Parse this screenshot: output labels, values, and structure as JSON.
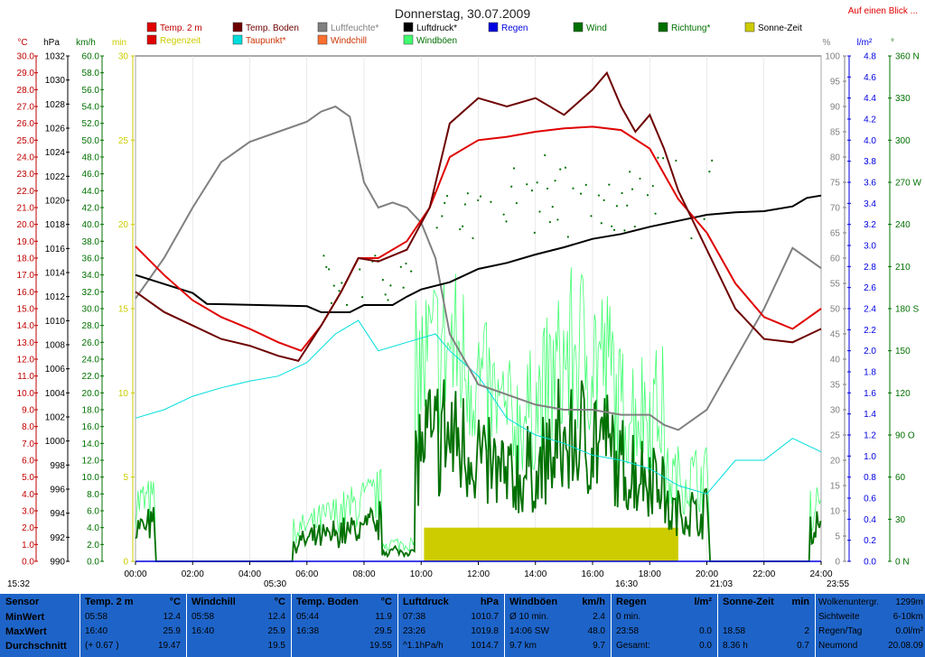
{
  "title": "Donnerstag, 30.07.2009",
  "top_link": "Auf einen Blick ...",
  "legend": [
    {
      "label": "Temp. 2 m",
      "color": "#e00000",
      "text_color": "#c00000"
    },
    {
      "label": "Temp. Boden",
      "color": "#6e0000",
      "text_color": "#6e0000"
    },
    {
      "label": "Luftfeuchte*",
      "color": "#808080",
      "text_color": "#808080"
    },
    {
      "label": "Luftdruck*",
      "color": "#000000",
      "text_color": "#000000"
    },
    {
      "label": "Regen",
      "color": "#0000e0",
      "text_color": "#0000e0"
    },
    {
      "label": "Wind",
      "color": "#007000",
      "text_color": "#007000"
    },
    {
      "label": "Richtung*",
      "color": "#007000",
      "text_color": "#007000"
    },
    {
      "label": "Sonne-Zeit",
      "color": "#cccc00",
      "text_color": "#000000"
    },
    {
      "label": "Regenzeit",
      "color": "#e00000",
      "text_color": "#cccc00"
    },
    {
      "label": "Taupunkt*",
      "color": "#00dddd",
      "text_color": "#cc3300"
    },
    {
      "label": "Windchill",
      "color": "#ff7030",
      "text_color": "#cc3300"
    },
    {
      "label": "Windböen",
      "color": "#40ff70",
      "text_color": "#007000"
    }
  ],
  "axis_units": {
    "temp": "°C",
    "hpa": "hPa",
    "kmh": "km/h",
    "min": "min",
    "pct": "%",
    "lm2": "l/m²",
    "deg": "°"
  },
  "axes": {
    "temp": [
      "30.0",
      "29.0",
      "28.0",
      "27.0",
      "26.0",
      "25.0",
      "24.0",
      "23.0",
      "22.0",
      "21.0",
      "20.0",
      "19.0",
      "18.0",
      "17.0",
      "16.0",
      "15.0",
      "14.0",
      "13.0",
      "12.0",
      "11.0",
      "10.0",
      "9.0",
      "8.0",
      "7.0",
      "6.0",
      "5.0",
      "4.0",
      "3.0",
      "2.0",
      "1.0",
      "0.0"
    ],
    "hpa": [
      "1032",
      "1030",
      "1028",
      "1026",
      "1024",
      "1022",
      "1020",
      "1018",
      "1016",
      "1014",
      "1012",
      "1010",
      "1008",
      "1006",
      "1004",
      "1002",
      "1000",
      "998",
      "996",
      "994",
      "992",
      "990"
    ],
    "kmh": [
      "60.0",
      "58.0",
      "56.0",
      "54.0",
      "52.0",
      "50.0",
      "48.0",
      "46.0",
      "44.0",
      "42.0",
      "40.0",
      "38.0",
      "36.0",
      "34.0",
      "32.0",
      "30.0",
      "28.0",
      "26.0",
      "24.0",
      "22.0",
      "20.0",
      "18.0",
      "16.0",
      "14.0",
      "12.0",
      "10.0",
      "8.0",
      "6.0",
      "4.0",
      "2.0",
      "0.0"
    ],
    "min": [
      "30",
      "25",
      "20",
      "15",
      "10",
      "5",
      "0"
    ],
    "pct": [
      "100",
      "95",
      "90",
      "85",
      "80",
      "75",
      "70",
      "65",
      "60",
      "55",
      "50",
      "45",
      "40",
      "35",
      "30",
      "25",
      "20",
      "15",
      "10",
      "5",
      "0"
    ],
    "lm2": [
      "4.8",
      "4.6",
      "4.4",
      "4.2",
      "4.0",
      "3.8",
      "3.6",
      "3.4",
      "3.2",
      "3.0",
      "2.8",
      "2.6",
      "2.4",
      "2.2",
      "2.0",
      "1.8",
      "1.6",
      "1.4",
      "1.2",
      "1.0",
      "0.8",
      "0.6",
      "0.4",
      "0.2",
      "0.0"
    ],
    "deg": [
      {
        "v": "360 N",
        "p": 0
      },
      {
        "v": "330",
        "p": 0.0833
      },
      {
        "v": "300",
        "p": 0.1667
      },
      {
        "v": "270 W",
        "p": 0.25
      },
      {
        "v": "240",
        "p": 0.3333
      },
      {
        "v": "210",
        "p": 0.4167
      },
      {
        "v": "180 S",
        "p": 0.5
      },
      {
        "v": "150",
        "p": 0.5833
      },
      {
        "v": "120",
        "p": 0.6667
      },
      {
        "v": "90 O",
        "p": 0.75
      },
      {
        "v": "60",
        "p": 0.8333
      },
      {
        "v": "30",
        "p": 0.9167
      },
      {
        "v": "0 N",
        "p": 1
      }
    ],
    "x": [
      "00:00",
      "02:00",
      "04:00",
      "06:00",
      "08:00",
      "10:00",
      "12:00",
      "14:00",
      "16:00",
      "18:00",
      "20:00",
      "22:00",
      "24:00"
    ]
  },
  "sun_times": {
    "sunrise": "05:30",
    "sunset": "21:03",
    "first": "15:32",
    "last": "23:55",
    "noon": "16:30"
  },
  "chart_data": {
    "type": "line",
    "x_range": [
      "00:00",
      "24:00"
    ],
    "series": [
      {
        "name": "Temp. 2 m",
        "unit": "°C",
        "color": "#e00000",
        "x": [
          0,
          1,
          2,
          3,
          4,
          5,
          5.8,
          6.5,
          7.2,
          7.8,
          8.5,
          9.5,
          10.3,
          11,
          12,
          13,
          14,
          15,
          16,
          17,
          18,
          18.5,
          19,
          20,
          21,
          22,
          23,
          24
        ],
        "values": [
          18.7,
          17,
          15.5,
          14.5,
          13.8,
          13,
          12.5,
          14,
          16,
          18,
          18,
          19,
          21,
          24,
          25,
          25.2,
          25.5,
          25.7,
          25.8,
          25.6,
          24.5,
          23,
          21.5,
          19.5,
          16.5,
          14.5,
          13.8,
          15
        ]
      },
      {
        "name": "Temp. Boden",
        "unit": "°C",
        "color": "#6e0000",
        "x": [
          0,
          1,
          2,
          3,
          4,
          5,
          5.7,
          6.5,
          7.2,
          7.8,
          8.5,
          9.5,
          10.3,
          11,
          12,
          13,
          14,
          15,
          16,
          16.5,
          17,
          17.5,
          18,
          18.5,
          19,
          20,
          21,
          22,
          23,
          24
        ],
        "values": [
          16,
          14.8,
          14,
          13.2,
          12.8,
          12.2,
          11.9,
          14,
          16,
          18,
          17.8,
          18.5,
          21,
          26,
          27.5,
          27,
          27.5,
          26.5,
          28,
          29,
          27,
          25.5,
          26.5,
          24.5,
          22,
          18.5,
          15,
          13.2,
          13,
          13.8
        ]
      },
      {
        "name": "Taupunkt*",
        "unit": "°C",
        "color": "#00dddd",
        "x": [
          0,
          1,
          2,
          3,
          4,
          5,
          6,
          7,
          7.8,
          8.5,
          9.5,
          10.5,
          11,
          12,
          13,
          14,
          15,
          16,
          17,
          18,
          19,
          20,
          21,
          22,
          23,
          24
        ],
        "values": [
          8.5,
          9,
          9.8,
          10.3,
          10.7,
          11,
          11.8,
          13.5,
          14.3,
          12.5,
          13,
          13.5,
          12.5,
          11,
          8.5,
          7.5,
          7,
          6.3,
          6,
          5.5,
          4.5,
          4,
          6,
          6,
          7.3,
          6.5
        ]
      },
      {
        "name": "Luftfeuchte*",
        "unit": "%",
        "color": "#808080",
        "x": [
          0,
          1,
          2,
          3,
          4,
          5,
          6,
          6.5,
          7,
          7.5,
          8,
          8.5,
          9,
          9.5,
          10,
          10.5,
          11,
          12,
          13,
          14,
          15,
          16,
          17,
          18,
          18.5,
          19,
          20,
          21,
          22,
          23,
          24
        ],
        "values": [
          52,
          60,
          70,
          79,
          83,
          85,
          87,
          89,
          90,
          88,
          75,
          70,
          71,
          70,
          67,
          60,
          45,
          35,
          33,
          31,
          30,
          30,
          29,
          29,
          27,
          26,
          30,
          40,
          50,
          62,
          58
        ]
      },
      {
        "name": "Luftdruck*",
        "unit": "hPa",
        "color": "#000000",
        "x": [
          0,
          2,
          2.5,
          6,
          6.5,
          7.5,
          8,
          9,
          9.5,
          10,
          11,
          12,
          13,
          14,
          15,
          16,
          17,
          18,
          19,
          20,
          21,
          22,
          23,
          23.5,
          24
        ],
        "values": [
          1013.8,
          1012.3,
          1011.4,
          1011.2,
          1010.7,
          1010.7,
          1011.3,
          1011.3,
          1012,
          1012.6,
          1013.2,
          1014.3,
          1014.8,
          1015.5,
          1016.1,
          1016.8,
          1017.2,
          1017.8,
          1018.3,
          1018.8,
          1019,
          1019.1,
          1019.5,
          1020.2,
          1020.4
        ]
      },
      {
        "name": "Windböen",
        "unit": "km/h",
        "color": "#40ff70",
        "x": [
          0,
          24
        ],
        "values": [
          2.4,
          48
        ]
      },
      {
        "name": "Wind",
        "unit": "km/h",
        "color": "#007000",
        "x": [
          0,
          24
        ],
        "values": [
          2.4,
          20
        ]
      },
      {
        "name": "Richtung*",
        "unit": "°",
        "color": "#007000",
        "x": [
          0,
          24
        ],
        "values": [
          0,
          360
        ]
      },
      {
        "name": "Sonne-Zeit",
        "unit": "min",
        "color": "#cccc00",
        "x": [
          10.1,
          19.0
        ],
        "values": [
          2,
          2
        ]
      },
      {
        "name": "Regen",
        "unit": "l/m²",
        "color": "#0000e0",
        "x": [
          0,
          24
        ],
        "values": [
          0,
          0
        ]
      }
    ]
  },
  "footer": {
    "row_labels": {
      "sensor": "Sensor",
      "min": "MinWert",
      "max": "MaxWert",
      "avg": "Durchschnitt"
    },
    "cols": [
      {
        "title": "Temp. 2 m",
        "unit": "°C",
        "rows": [
          [
            "05:58",
            "12.4"
          ],
          [
            "16:40",
            "25.9"
          ],
          [
            "(+ 0.67 )",
            "19.47"
          ]
        ]
      },
      {
        "title": "Windchill",
        "unit": "°C",
        "rows": [
          [
            "05:58",
            "12.4"
          ],
          [
            "16:40",
            "25.9"
          ],
          [
            "",
            "19.5"
          ]
        ]
      },
      {
        "title": "Temp. Boden",
        "unit": "°C",
        "rows": [
          [
            "05:44",
            "11.9"
          ],
          [
            "16:38",
            "29.5"
          ],
          [
            "",
            "19.55"
          ]
        ]
      },
      {
        "title": "Luftdruck",
        "unit": "hPa",
        "rows": [
          [
            "07:38",
            "1010.7"
          ],
          [
            "23:26",
            "1019.8"
          ],
          [
            "^1.1hPa/h",
            "1014.7"
          ]
        ]
      },
      {
        "title": "Windböen",
        "unit": "km/h",
        "rows": [
          [
            "Ø 10 min.",
            "2.4"
          ],
          [
            "14:06   SW",
            "48.0"
          ],
          [
            "9.7 km",
            "9.7"
          ]
        ]
      },
      {
        "title": "Regen",
        "unit": "l/m²",
        "rows": [
          [
            "0 min.",
            ""
          ],
          [
            "23:58",
            "0.0"
          ],
          [
            "Gesamt:",
            "0.0"
          ]
        ]
      },
      {
        "title": "Sonne-Zeit",
        "unit": "min",
        "rows": [
          [
            "",
            ""
          ],
          [
            "18.58",
            "2"
          ],
          [
            "8.36 h",
            "0.7"
          ]
        ]
      }
    ],
    "extra": [
      [
        "Wolkenuntergr.",
        "1299m"
      ],
      [
        "Sichtweite",
        "6-10km"
      ],
      [
        "Regen/Tag",
        "0.0l/m²"
      ],
      [
        "Neumond",
        "20.08.09"
      ]
    ]
  }
}
